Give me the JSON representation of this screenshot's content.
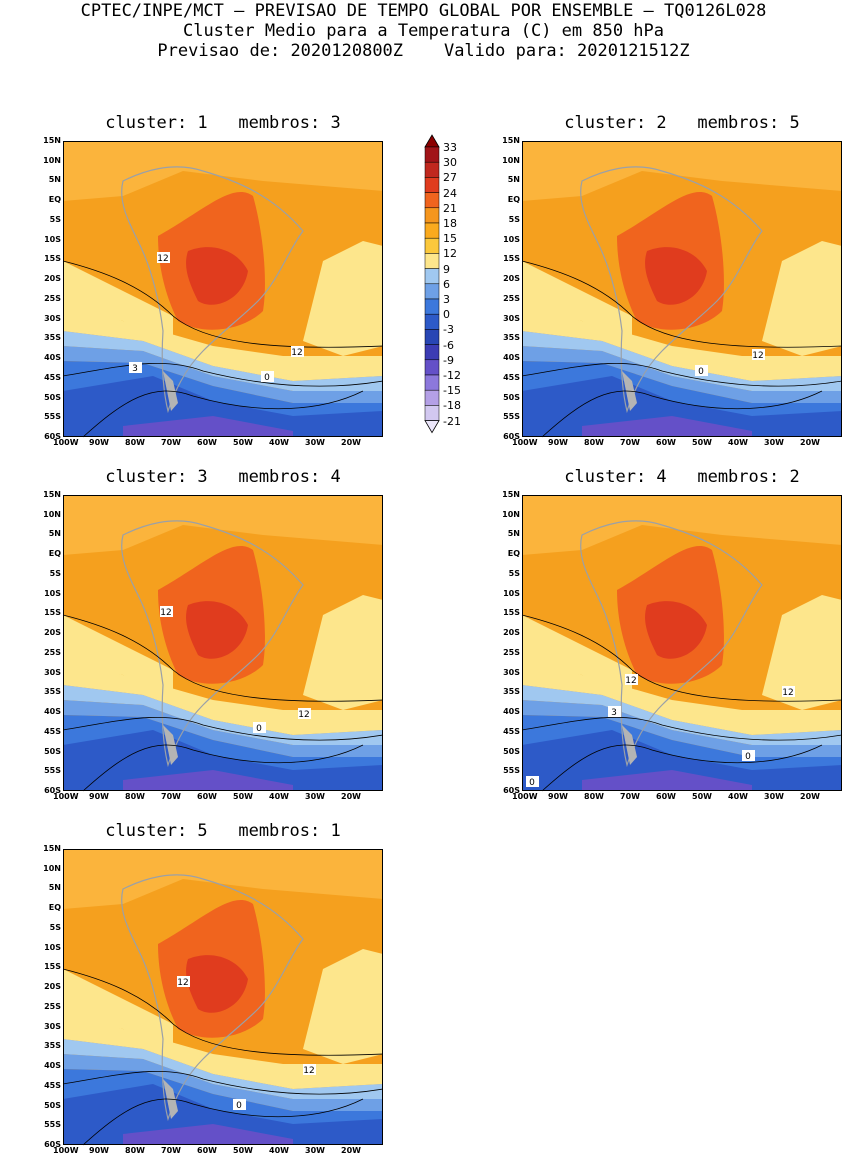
{
  "header": {
    "line1": "CPTEC/INPE/MCT – PREVISAO DE TEMPO GLOBAL POR ENSEMBLE – TQ0126L028",
    "line2": "Cluster Medio para a Temperatura (C) em 850 hPa",
    "line3": "Previsao de: 2020120800Z    Valido para: 2020121512Z"
  },
  "lat_ticks": [
    "15N",
    "10N",
    "5N",
    "EQ",
    "5S",
    "10S",
    "15S",
    "20S",
    "25S",
    "30S",
    "35S",
    "40S",
    "45S",
    "50S",
    "55S",
    "60S"
  ],
  "lon_ticks": [
    "100W",
    "90W",
    "80W",
    "70W",
    "60W",
    "50W",
    "40W",
    "30W",
    "20W"
  ],
  "colorbar": {
    "labels": [
      "33",
      "30",
      "27",
      "24",
      "21",
      "18",
      "15",
      "12",
      "9",
      "6",
      "3",
      "0",
      "-3",
      "-6",
      "-9",
      "-12",
      "-15",
      "-18",
      "-21"
    ],
    "colors": [
      "#8b0000",
      "#a11418",
      "#c0281e",
      "#e03c1e",
      "#f0641e",
      "#f5961e",
      "#faaa1e",
      "#fbc83c",
      "#fde68c",
      "#a0c8f0",
      "#6ea0e6",
      "#3c78dc",
      "#2d5ac8",
      "#2846b4",
      "#3c3cb4",
      "#6450c8",
      "#8c78dc",
      "#b4a0e6",
      "#d2c8f0",
      "#ebe6fa"
    ]
  },
  "panels": [
    {
      "title": "cluster: 1   membros: 3",
      "contour_labels": [
        "12",
        "3",
        "0",
        "12"
      ]
    },
    {
      "title": "cluster: 2   membros: 5",
      "contour_labels": [
        "12",
        "0"
      ]
    },
    {
      "title": "cluster: 3   membros: 4",
      "contour_labels": [
        "12",
        "0",
        "12"
      ]
    },
    {
      "title": "cluster: 4   membros: 2",
      "contour_labels": [
        "12",
        "3",
        "12",
        "0",
        "0"
      ]
    },
    {
      "title": "cluster: 5   membros: 1",
      "contour_labels": [
        "12",
        "0",
        "12"
      ]
    }
  ]
}
